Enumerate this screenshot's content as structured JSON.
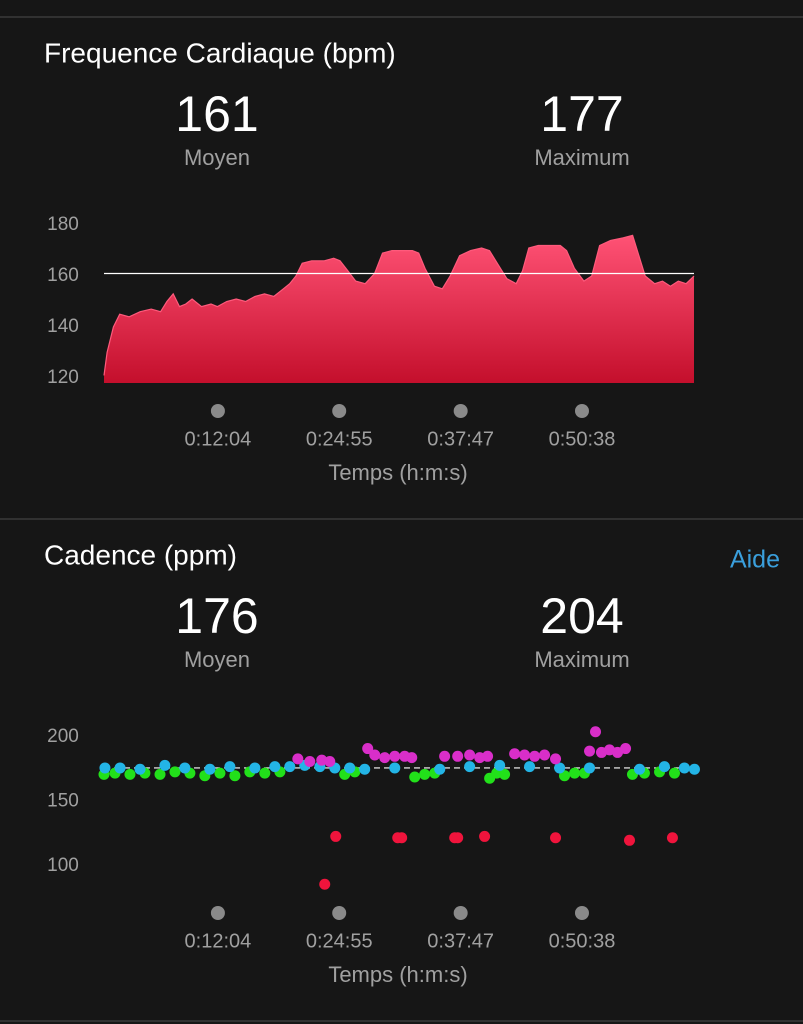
{
  "chart_data": [
    {
      "type": "area",
      "title": "Frequence Cardiaque (bpm)",
      "stats": [
        {
          "value": 161,
          "label": "Moyen"
        },
        {
          "value": 177,
          "label": "Maximum"
        }
      ],
      "color": "#e8284f",
      "x": [
        0,
        20,
        60,
        100,
        160,
        230,
        300,
        360,
        400,
        440,
        480,
        520,
        560,
        620,
        680,
        720,
        780,
        840,
        900,
        960,
        1020,
        1080,
        1140,
        1180,
        1220,
        1260,
        1320,
        1400,
        1460,
        1500,
        1550,
        1600,
        1660,
        1720,
        1770,
        1830,
        1900,
        1960,
        2000,
        2040,
        2100,
        2150,
        2200,
        2260,
        2330,
        2400,
        2450,
        2500,
        2560,
        2620,
        2660,
        2700,
        2760,
        2840,
        2900,
        2940,
        2990,
        3050,
        3100,
        3150,
        3220,
        3300,
        3360,
        3400,
        3440,
        3500,
        3550,
        3600,
        3650,
        3700,
        3750
      ],
      "values": [
        121,
        130,
        140,
        145,
        144,
        146,
        147,
        146,
        150,
        153,
        148,
        149,
        151,
        148,
        149,
        148,
        150,
        151,
        150,
        152,
        153,
        152,
        155,
        157,
        160,
        165,
        166,
        166,
        167,
        166,
        162,
        158,
        157,
        161,
        169,
        170,
        170,
        170,
        169,
        163,
        156,
        155,
        160,
        168,
        170,
        171,
        170,
        165,
        159,
        157,
        162,
        171,
        172,
        172,
        172,
        170,
        163,
        158,
        160,
        172,
        174,
        175,
        176,
        168,
        160,
        157,
        158,
        156,
        158,
        157,
        160
      ],
      "xlim": [
        0,
        3750
      ],
      "ylim": [
        118,
        182
      ],
      "xticks": [
        {
          "value": 724,
          "label": "0:12:04"
        },
        {
          "value": 1495,
          "label": "0:24:55"
        },
        {
          "value": 2267,
          "label": "0:37:47"
        },
        {
          "value": 3038,
          "label": "0:50:38"
        }
      ],
      "yticks": [
        120,
        140,
        160,
        180
      ],
      "x_label": "Temps (h:m:s)"
    },
    {
      "type": "scatter",
      "title": "Cadence (ppm)",
      "help": "Aide",
      "stats": [
        {
          "value": 176,
          "label": "Moyen"
        },
        {
          "value": 204,
          "label": "Maximum"
        }
      ],
      "series": [
        {
          "color": "#22e01a",
          "x": [
            0,
            70,
            165,
            260,
            356,
            451,
            546,
            641,
            737,
            832,
            927,
            1022,
            1118,
            1530,
            1594,
            1975,
            2038,
            2102,
            2451,
            2496,
            2546,
            2927,
            2991,
            3054,
            3359,
            3435,
            3531,
            3626
          ],
          "values": [
            171,
            172,
            171,
            172,
            171,
            173,
            172,
            170,
            172,
            170,
            173,
            172,
            173,
            171,
            173,
            169,
            171,
            172,
            168,
            172,
            171,
            170,
            172,
            172,
            171,
            172,
            173,
            172
          ]
        },
        {
          "color": "#23b4e6",
          "x": [
            6,
            102,
            229,
            387,
            514,
            673,
            800,
            959,
            1086,
            1181,
            1276,
            1372,
            1467,
            1562,
            1657,
            1848,
            2134,
            2324,
            2515,
            2705,
            2896,
            3086,
            3404,
            3562,
            3689,
            3753
          ],
          "values": [
            176,
            176,
            175,
            178,
            176,
            175,
            177,
            176,
            177,
            177,
            178,
            177,
            176,
            176,
            175,
            176,
            175,
            177,
            178,
            177,
            176,
            176,
            175,
            177,
            176,
            175
          ]
        },
        {
          "color": "#d92ec9",
          "x": [
            1232,
            1308,
            1384,
            1435,
            1676,
            1721,
            1784,
            1848,
            1911,
            1956,
            2165,
            2248,
            2324,
            2388,
            2438,
            2610,
            2673,
            2737,
            2800,
            2870,
            3086,
            3124,
            3162,
            3213,
            3264,
            3315
          ],
          "values": [
            183,
            181,
            182,
            181,
            191,
            186,
            184,
            185,
            185,
            184,
            185,
            185,
            186,
            184,
            185,
            187,
            186,
            185,
            186,
            183,
            189,
            204,
            188,
            190,
            188,
            191
          ]
        },
        {
          "color": "#f0143c",
          "x": [
            1403,
            1473,
            1867,
            1892,
            2229,
            2248,
            2419,
            2870,
            3340,
            3613
          ],
          "values": [
            86,
            123,
            122,
            122,
            122,
            122,
            123,
            122,
            120,
            122
          ]
        }
      ],
      "xlim": [
        0,
        3750
      ],
      "ylim": [
        80,
        210
      ],
      "xticks": [
        {
          "value": 724,
          "label": "0:12:04"
        },
        {
          "value": 1495,
          "label": "0:24:55"
        },
        {
          "value": 2267,
          "label": "0:37:47"
        },
        {
          "value": 3038,
          "label": "0:50:38"
        }
      ],
      "yticks": [
        100,
        150,
        200
      ],
      "x_label": "Temps (h:m:s)"
    }
  ]
}
